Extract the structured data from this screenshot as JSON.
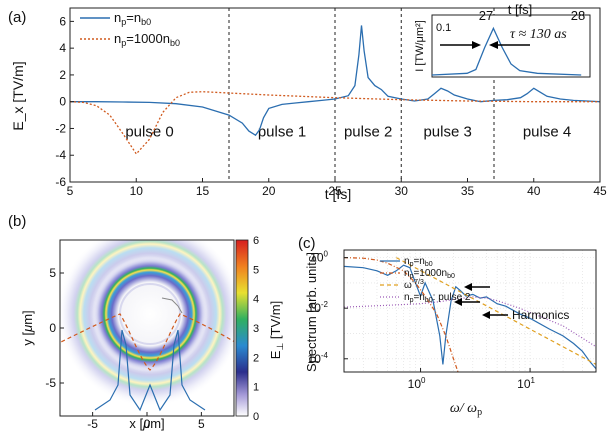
{
  "chart_data": [
    {
      "panel_label": "(a)",
      "type": "line",
      "xlabel": "t [fs]",
      "ylabel": "E_x [TV/m]",
      "xlim": [
        5,
        45
      ],
      "ylim": [
        -6,
        7
      ],
      "xticks": [
        5,
        10,
        15,
        20,
        25,
        30,
        35,
        40,
        45
      ],
      "yticks": [
        -6,
        -4,
        -2,
        0,
        2,
        4,
        6
      ],
      "vlines": [
        17,
        25,
        30,
        37
      ],
      "regions": [
        {
          "label": "pulse 0",
          "x": 11
        },
        {
          "label": "pulse 1",
          "x": 21
        },
        {
          "label": "pulse 2",
          "x": 27.5
        },
        {
          "label": "pulse 3",
          "x": 33.5
        },
        {
          "label": "pulse 4",
          "x": 41
        }
      ],
      "series": [
        {
          "name": "n_p=n_b0",
          "color": "#2b6eb0",
          "points": [
            [
              5,
              0.0
            ],
            [
              7,
              0.0
            ],
            [
              9,
              -0.02
            ],
            [
              11,
              -0.05
            ],
            [
              13,
              -0.15
            ],
            [
              15,
              -0.4
            ],
            [
              17,
              -1.0
            ],
            [
              18,
              -1.6
            ],
            [
              18.5,
              -2.2
            ],
            [
              19,
              -2.5
            ],
            [
              19.3,
              -2.1
            ],
            [
              19.6,
              -1.2
            ],
            [
              20,
              -0.5
            ],
            [
              21,
              -0.2
            ],
            [
              22,
              -0.1
            ],
            [
              23,
              0.0
            ],
            [
              24,
              0.1
            ],
            [
              25,
              0.2
            ],
            [
              26,
              0.45
            ],
            [
              26.5,
              1.2
            ],
            [
              26.8,
              3.5
            ],
            [
              27,
              5.7
            ],
            [
              27.2,
              3.8
            ],
            [
              27.5,
              1.8
            ],
            [
              28,
              1.2
            ],
            [
              28.5,
              0.9
            ],
            [
              29,
              0.4
            ],
            [
              30,
              0.2
            ],
            [
              31,
              0.05
            ],
            [
              32,
              0.2
            ],
            [
              32.5,
              0.6
            ],
            [
              33,
              1.0
            ],
            [
              33.5,
              0.8
            ],
            [
              34,
              0.5
            ],
            [
              35,
              0.2
            ],
            [
              36,
              0.0
            ],
            [
              37,
              0.1
            ],
            [
              38,
              0.15
            ],
            [
              39,
              0.3
            ],
            [
              39.5,
              0.6
            ],
            [
              40,
              1.0
            ],
            [
              40.5,
              0.7
            ],
            [
              41,
              0.4
            ],
            [
              42,
              0.2
            ],
            [
              43,
              0.1
            ],
            [
              44,
              0.05
            ],
            [
              45,
              0.0
            ]
          ]
        },
        {
          "name": "n_p=1000n_b0",
          "color": "#d05a1e",
          "points": [
            [
              5,
              0.0
            ],
            [
              6,
              -0.05
            ],
            [
              7,
              -0.3
            ],
            [
              8,
              -1.0
            ],
            [
              9,
              -2.4
            ],
            [
              10,
              -3.9
            ],
            [
              11,
              -2.8
            ],
            [
              12,
              -0.8
            ],
            [
              13,
              0.3
            ],
            [
              14,
              0.7
            ],
            [
              15,
              0.75
            ],
            [
              17,
              0.65
            ],
            [
              20,
              0.5
            ],
            [
              25,
              0.3
            ],
            [
              30,
              0.15
            ],
            [
              35,
              0.05
            ],
            [
              40,
              0.0
            ],
            [
              45,
              0.0
            ]
          ]
        }
      ],
      "legend": {
        "position": "top-left"
      },
      "inset": {
        "title": "t [fs]",
        "ylabel": "I [TW/μm²]",
        "xticks": [
          27,
          28
        ],
        "ytick": "0.1",
        "annotation": "τ ≈ 130 as",
        "points": [
          [
            26.3,
            0.0
          ],
          [
            26.7,
            0.003
          ],
          [
            26.8,
            0.01
          ],
          [
            26.9,
            0.05
          ],
          [
            27.0,
            0.085
          ],
          [
            27.1,
            0.05
          ],
          [
            27.2,
            0.02
          ],
          [
            27.3,
            0.008
          ],
          [
            27.5,
            0.003
          ],
          [
            28.0,
            0.0
          ]
        ]
      }
    },
    {
      "panel_label": "(b)",
      "type": "heatmap",
      "xlabel": "x [μm]",
      "ylabel": "y [μm]",
      "xlim": [
        -8,
        8
      ],
      "ylim": [
        -8,
        8
      ],
      "xticks": [
        -5,
        0,
        5
      ],
      "yticks": [
        -5,
        0,
        5
      ],
      "colorbar": {
        "label": "E_⊥ [TV/m]",
        "range": [
          0,
          6
        ],
        "ticks": [
          0,
          1,
          2,
          3,
          4,
          5,
          6
        ]
      }
    },
    {
      "panel_label": "(c)",
      "type": "line",
      "xscale": "log",
      "yscale": "log",
      "xlabel": "ω / ω_p",
      "ylabel": "Spectrum [arb. units]",
      "xlim": [
        0.2,
        40
      ],
      "ylim": [
        3e-05,
        2
      ],
      "xticks": [
        "10^0",
        "10^1"
      ],
      "yticks": [
        "10^0",
        "10^-2",
        "10^-4"
      ],
      "annotation": "Harmonics",
      "series": [
        {
          "name": "n_p=n_b0",
          "color": "#2b6eb0",
          "points": [
            [
              0.2,
              0.45
            ],
            [
              0.3,
              0.4
            ],
            [
              0.4,
              0.3
            ],
            [
              0.5,
              0.2
            ],
            [
              0.6,
              0.3
            ],
            [
              0.7,
              0.5
            ],
            [
              0.8,
              0.4
            ],
            [
              0.9,
              0.1
            ],
            [
              1.0,
              0.03
            ],
            [
              1.1,
              0.1
            ],
            [
              1.3,
              0.02
            ],
            [
              1.5,
              0.0008
            ],
            [
              1.6,
              6e-05
            ],
            [
              1.7,
              0.0008
            ],
            [
              1.9,
              0.02
            ],
            [
              2.1,
              0.07
            ],
            [
              2.3,
              0.05
            ],
            [
              2.6,
              0.03
            ],
            [
              3,
              0.035
            ],
            [
              3.5,
              0.025
            ],
            [
              4,
              0.028
            ],
            [
              5,
              0.015
            ],
            [
              6,
              0.012
            ],
            [
              8,
              0.006
            ],
            [
              10,
              0.004
            ],
            [
              15,
              0.0015
            ],
            [
              20,
              0.0008
            ],
            [
              25,
              0.0004
            ],
            [
              30,
              0.0002
            ],
            [
              35,
              8e-05
            ],
            [
              40,
              4e-05
            ]
          ]
        },
        {
          "name": "n_p=1000n_b0",
          "color": "#d05a1e",
          "points": [
            [
              0.2,
              1.0
            ],
            [
              0.3,
              0.95
            ],
            [
              0.4,
              0.8
            ],
            [
              0.5,
              0.6
            ],
            [
              0.7,
              0.3
            ],
            [
              0.9,
              0.1
            ],
            [
              1.1,
              0.03
            ],
            [
              1.4,
              0.006
            ],
            [
              1.7,
              0.0008
            ],
            [
              2.0,
              0.0001
            ],
            [
              2.2,
              3e-05
            ]
          ]
        },
        {
          "name": "ω^-7/3",
          "color": "#e0a020",
          "points": [
            [
              0.6,
              1.0
            ],
            [
              40,
              6e-05
            ]
          ]
        },
        {
          "name": "n_p=n_b0: pulse 2",
          "color": "#9b59b6",
          "points": [
            [
              0.2,
              0.011
            ],
            [
              0.5,
              0.013
            ],
            [
              1,
              0.015
            ],
            [
              1.5,
              0.018
            ],
            [
              2,
              0.022
            ],
            [
              3,
              0.028
            ],
            [
              4,
              0.025
            ],
            [
              5,
              0.02
            ],
            [
              8,
              0.01
            ],
            [
              12,
              0.005
            ],
            [
              20,
              0.002
            ],
            [
              40,
              0.0003
            ]
          ]
        }
      ],
      "legend": {
        "position": "top-center"
      }
    }
  ]
}
